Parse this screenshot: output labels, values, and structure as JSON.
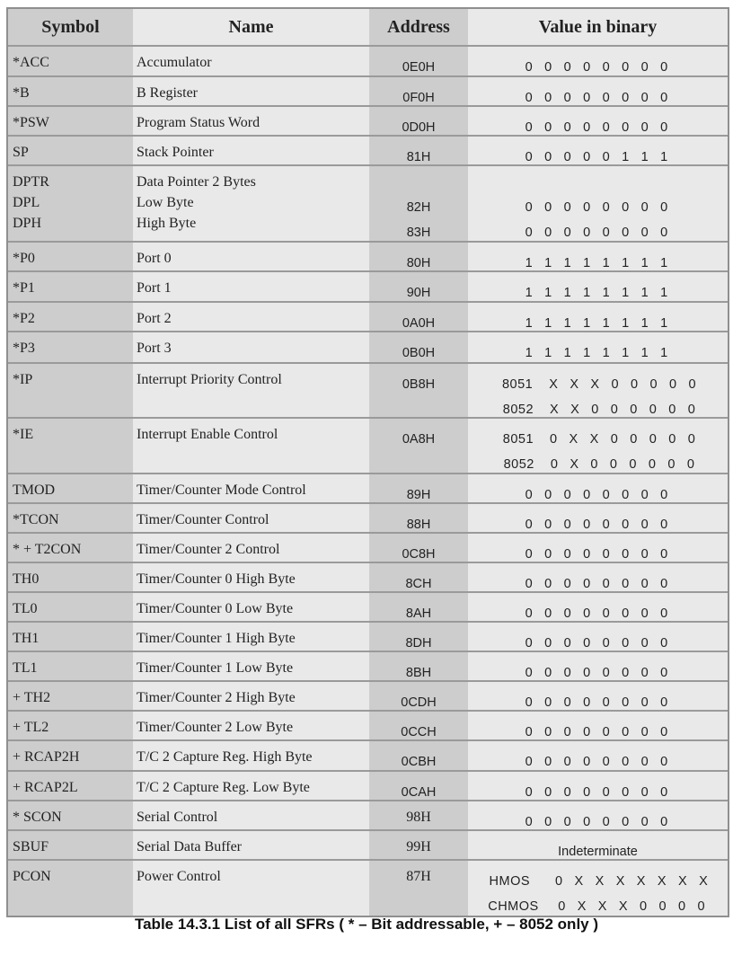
{
  "headers": {
    "symbol": "Symbol",
    "name": "Name",
    "address": "Address",
    "value": "Value in binary"
  },
  "rows": [
    {
      "symbol": [
        "*ACC"
      ],
      "name": [
        "Accumulator"
      ],
      "address": [
        "0E0H"
      ],
      "value": [
        "0 0 0 0  0 0 0 0"
      ]
    },
    {
      "symbol": [
        "*B"
      ],
      "name": [
        "B Register"
      ],
      "address": [
        "0F0H"
      ],
      "value": [
        "0 0 0 0  0 0 0 0"
      ]
    },
    {
      "symbol": [
        "*PSW"
      ],
      "name": [
        "Program Status Word"
      ],
      "address": [
        "0D0H"
      ],
      "value": [
        "0 0 0 0  0 0 0 0"
      ]
    },
    {
      "symbol": [
        "SP"
      ],
      "name": [
        "Stack Pointer"
      ],
      "address": [
        "81H"
      ],
      "value": [
        "0 0 0 0  0 1 1 1"
      ]
    },
    {
      "symbol": [
        "DPTR",
        "DPL",
        "DPH"
      ],
      "name": [
        "Data Pointer 2 Bytes",
        "Low Byte",
        "High Byte"
      ],
      "address": [
        "",
        "82H",
        "83H"
      ],
      "value": [
        "",
        "0 0 0 0  0 0 0 0",
        "0 0 0 0  0 0 0 0"
      ]
    },
    {
      "symbol": [
        "*P0"
      ],
      "name": [
        "Port 0"
      ],
      "address": [
        "80H"
      ],
      "value": [
        "1 1 1 1  1 1 1 1"
      ]
    },
    {
      "symbol": [
        "*P1"
      ],
      "name": [
        "Port 1"
      ],
      "address": [
        "90H"
      ],
      "value": [
        "1 1 1 1  1 1 1 1"
      ]
    },
    {
      "symbol": [
        "*P2"
      ],
      "name": [
        "Port 2"
      ],
      "address": [
        "0A0H"
      ],
      "value": [
        "1 1 1 1  1 1 1 1"
      ]
    },
    {
      "symbol": [
        "*P3"
      ],
      "name": [
        "Port 3"
      ],
      "address": [
        "0B0H"
      ],
      "value": [
        "1 1 1 1  1 1 1 1"
      ]
    },
    {
      "symbol": [
        "*IP"
      ],
      "name": [
        "Interrupt Priority Control"
      ],
      "address": [
        "0B8H"
      ],
      "value": [
        {
          "label": "8051",
          "bits": "X X X 0  0 0 0 0"
        },
        {
          "label": "8052",
          "bits": "X X 0 0  0 0 0 0"
        }
      ]
    },
    {
      "symbol": [
        "*IE"
      ],
      "name": [
        "Interrupt Enable Control"
      ],
      "address": [
        "0A8H"
      ],
      "value": [
        {
          "label": "8051",
          "bits": "0 X X 0  0 0 0 0"
        },
        {
          "label": "8052",
          "bits": "0 X 0 0  0 0 0 0"
        }
      ]
    },
    {
      "symbol": [
        "TMOD"
      ],
      "name": [
        "Timer/Counter Mode Control"
      ],
      "address": [
        "89H"
      ],
      "value": [
        "0 0 0 0  0 0 0 0"
      ]
    },
    {
      "symbol": [
        "*TCON"
      ],
      "name": [
        "Timer/Counter Control"
      ],
      "address": [
        "88H"
      ],
      "value": [
        "0 0 0 0  0 0 0 0"
      ]
    },
    {
      "symbol": [
        "* + T2CON"
      ],
      "name": [
        "Timer/Counter 2 Control"
      ],
      "address": [
        "0C8H"
      ],
      "value": [
        "0 0 0 0  0 0 0 0"
      ]
    },
    {
      "symbol": [
        "TH0"
      ],
      "name": [
        "Timer/Counter 0 High Byte"
      ],
      "address": [
        "8CH"
      ],
      "value": [
        "0 0 0 0  0 0 0 0"
      ]
    },
    {
      "symbol": [
        "TL0"
      ],
      "name": [
        "Timer/Counter 0 Low Byte"
      ],
      "address": [
        "8AH"
      ],
      "value": [
        "0 0 0 0  0 0 0 0"
      ]
    },
    {
      "symbol": [
        "TH1"
      ],
      "name": [
        "Timer/Counter 1 High Byte"
      ],
      "address": [
        "8DH"
      ],
      "value": [
        "0 0 0 0  0 0 0 0"
      ]
    },
    {
      "symbol": [
        "TL1"
      ],
      "name": [
        "Timer/Counter 1 Low Byte"
      ],
      "address": [
        "8BH"
      ],
      "value": [
        "0 0 0 0  0 0 0 0"
      ]
    },
    {
      "symbol": [
        "+ TH2"
      ],
      "name": [
        "Timer/Counter 2 High Byte"
      ],
      "address": [
        "0CDH"
      ],
      "value": [
        "0 0 0 0  0 0 0 0"
      ]
    },
    {
      "symbol": [
        "+ TL2"
      ],
      "name": [
        "Timer/Counter 2 Low Byte"
      ],
      "address": [
        "0CCH"
      ],
      "value": [
        "0 0 0 0  0 0 0 0"
      ]
    },
    {
      "symbol": [
        "+ RCAP2H"
      ],
      "name": [
        "T/C 2 Capture Reg. High Byte"
      ],
      "address": [
        "0CBH"
      ],
      "value": [
        "0 0 0 0  0 0 0 0"
      ]
    },
    {
      "symbol": [
        "+ RCAP2L"
      ],
      "name": [
        "T/C 2 Capture Reg. Low Byte"
      ],
      "address": [
        "0CAH"
      ],
      "value": [
        "0 0 0 0  0 0 0 0"
      ]
    },
    {
      "symbol": [
        "* SCON"
      ],
      "name": [
        "Serial Control"
      ],
      "address": [
        "98H"
      ],
      "value": [
        "0 0 0 0  0 0 0 0"
      ]
    },
    {
      "symbol": [
        "SBUF"
      ],
      "name": [
        "Serial Data Buffer"
      ],
      "address": [
        "99H"
      ],
      "value": [
        "Indeterminate"
      ]
    },
    {
      "symbol": [
        "PCON"
      ],
      "name": [
        "Power Control"
      ],
      "address": [
        "87H"
      ],
      "value": [
        {
          "label": "HMOS",
          "bits": "0 X X X  X X X X"
        },
        {
          "label": "CHMOS",
          "bits": "0 X X X  0 0 0 0"
        }
      ]
    }
  ],
  "caption": "Table 14.3.1 List of all SFRs ( * – Bit addressable, + – 8052 only )",
  "colors": {
    "dark_column": "#cdcdcd",
    "light_column": "#e9e9e9",
    "rule": "#9a9a9a"
  }
}
